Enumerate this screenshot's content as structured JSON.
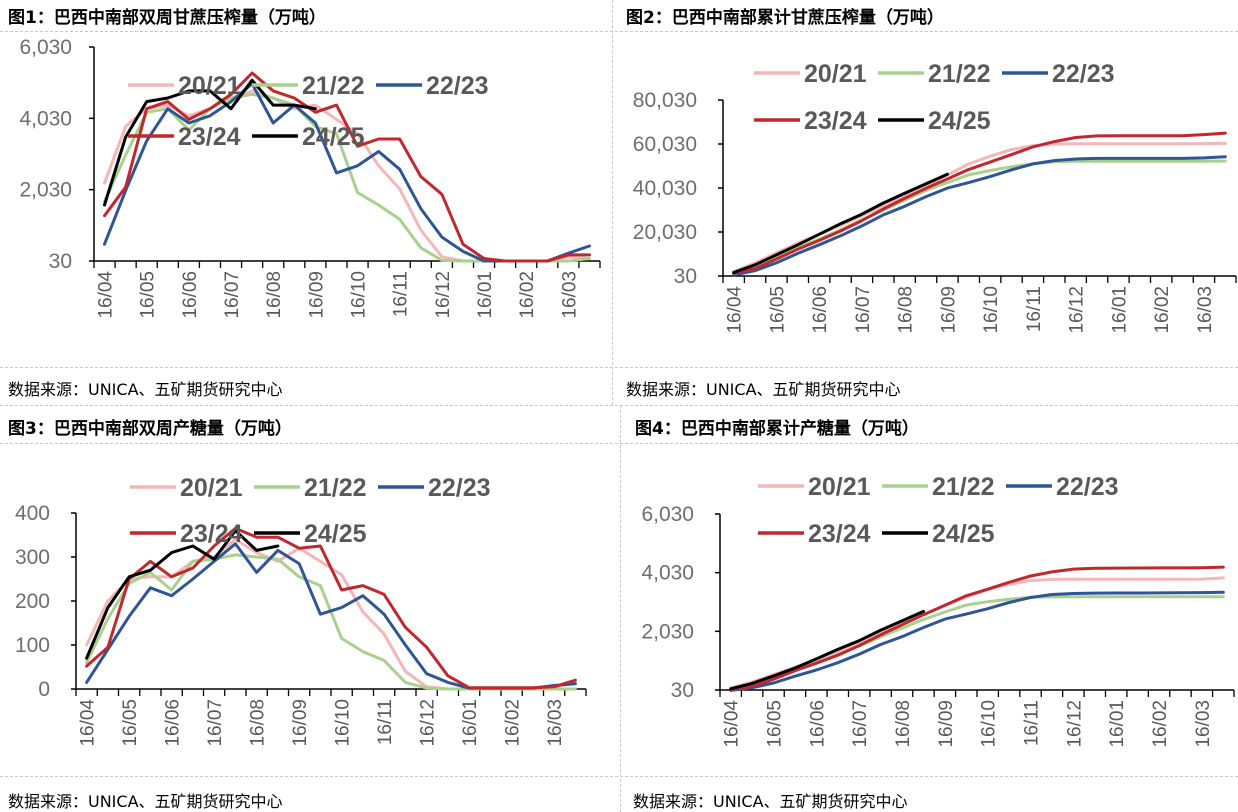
{
  "figures": [
    {
      "title": "图1：巴西中南部双周甘蔗压榨量（万吨）",
      "source": "数据来源：UNICA、五矿期货研究中心"
    },
    {
      "title": "图2：巴西中南部累计甘蔗压榨量（万吨）",
      "source": "数据来源：UNICA、五矿期货研究中心"
    },
    {
      "title": "图3：巴西中南部双周产糖量（万吨）",
      "source": "数据来源：UNICA、五矿期货研究中心"
    },
    {
      "title": "图4：巴西中南部累计产糖量（万吨）",
      "source": "数据来源：UNICA、五矿期货研究中心"
    }
  ],
  "colors": {
    "20/21": "#F4B6B8",
    "21/22": "#A9D18E",
    "22/23": "#2F5597",
    "23/24": "#C0282D",
    "24/25": "#000000"
  },
  "chart_data": [
    {
      "type": "line",
      "title": "图1：巴西中南部双周甘蔗压榨量（万吨）",
      "xlabel": "",
      "ylabel": "",
      "ylim": [
        30,
        6030
      ],
      "yticks": [
        30,
        2030,
        4030,
        6030
      ],
      "ytick_labels": [
        "30",
        "2,030",
        "4,030",
        "6,030"
      ],
      "x_tick_labels": [
        "16/04",
        "16/05",
        "16/06",
        "16/07",
        "16/08",
        "16/09",
        "16/10",
        "16/11",
        "16/12",
        "16/01",
        "16/02",
        "16/03"
      ],
      "n_periods": 24,
      "legend_position": "top",
      "series": [
        {
          "name": "20/21",
          "values": [
            2210,
            3800,
            4300,
            4400,
            4100,
            4300,
            4600,
            4800,
            4600,
            4300,
            4400,
            4000,
            3600,
            2700,
            2050,
            900,
            150,
            30,
            30,
            30,
            30,
            30,
            150,
            100
          ]
        },
        {
          "name": "21/22",
          "values": [
            1700,
            3000,
            4200,
            4300,
            3700,
            4300,
            4600,
            4700,
            4600,
            4400,
            3800,
            3600,
            1950,
            1600,
            1200,
            400,
            50,
            30,
            30,
            30,
            30,
            30,
            30,
            100
          ]
        },
        {
          "name": "22/23",
          "values": [
            500,
            2000,
            3400,
            4300,
            3900,
            4100,
            4500,
            5000,
            3900,
            4400,
            3900,
            2500,
            2700,
            3100,
            2600,
            1500,
            700,
            300,
            30,
            30,
            30,
            30,
            250,
            450
          ]
        },
        {
          "name": "23/24",
          "values": [
            1300,
            2100,
            4300,
            4500,
            4000,
            4300,
            4700,
            5300,
            4800,
            4600,
            4200,
            4400,
            3250,
            3450,
            3450,
            2400,
            1900,
            500,
            100,
            30,
            30,
            30,
            200,
            200
          ]
        },
        {
          "name": "24/25",
          "values": [
            1600,
            3500,
            4500,
            4600,
            4800,
            4800,
            4300,
            5100,
            4400,
            4400,
            4300
          ]
        }
      ]
    },
    {
      "type": "line",
      "title": "图2：巴西中南部累计甘蔗压榨量（万吨）",
      "xlabel": "",
      "ylabel": "",
      "ylim": [
        30,
        80030
      ],
      "yticks": [
        30,
        20030,
        40030,
        60030,
        80030
      ],
      "ytick_labels": [
        "30",
        "20,030",
        "40,030",
        "60,030",
        "80,030"
      ],
      "x_tick_labels": [
        "16/04",
        "16/05",
        "16/06",
        "16/07",
        "16/08",
        "16/09",
        "16/10",
        "16/11",
        "16/12",
        "16/01",
        "16/02",
        "16/03"
      ],
      "n_periods": 24,
      "legend_position": "top",
      "series": [
        {
          "name": "20/21",
          "values": [
            2000,
            6000,
            10500,
            15000,
            19000,
            23000,
            27500,
            32000,
            36500,
            41000,
            46000,
            51000,
            54500,
            57500,
            59300,
            60000,
            60100,
            60100,
            60100,
            60100,
            60100,
            60100,
            60200,
            60300
          ]
        },
        {
          "name": "21/22",
          "values": [
            1700,
            4700,
            9000,
            13000,
            16800,
            21000,
            25500,
            30000,
            34500,
            39000,
            42500,
            46000,
            48000,
            49700,
            51000,
            52000,
            52200,
            52200,
            52200,
            52200,
            52200,
            52200,
            52200,
            52300
          ]
        },
        {
          "name": "22/23",
          "values": [
            500,
            2500,
            6000,
            10300,
            14200,
            18300,
            22800,
            27800,
            31700,
            36100,
            40000,
            42500,
            45200,
            48300,
            51000,
            52500,
            53200,
            53500,
            53500,
            53500,
            53500,
            53500,
            53700,
            54200
          ]
        },
        {
          "name": "23/24",
          "values": [
            1300,
            3400,
            7700,
            12200,
            16200,
            20500,
            25200,
            30500,
            35300,
            39900,
            44100,
            48500,
            51800,
            55200,
            58700,
            61100,
            63000,
            63700,
            63800,
            63800,
            63800,
            63800,
            64300,
            65000
          ]
        },
        {
          "name": "24/25",
          "values": [
            1600,
            5100,
            9600,
            14200,
            19000,
            23800,
            28100,
            33200,
            37600,
            42000,
            46300
          ]
        }
      ]
    },
    {
      "type": "line",
      "title": "图3：巴西中南部双周产糖量（万吨）",
      "xlabel": "",
      "ylabel": "",
      "ylim": [
        0,
        400
      ],
      "yticks": [
        0,
        100,
        200,
        300,
        400
      ],
      "ytick_labels": [
        "0",
        "100",
        "200",
        "300",
        "400"
      ],
      "x_tick_labels": [
        "16/04",
        "16/05",
        "16/06",
        "16/07",
        "16/08",
        "16/09",
        "16/10",
        "16/11",
        "16/12",
        "16/01",
        "16/02",
        "16/03"
      ],
      "n_periods": 24,
      "legend_position": "top",
      "series": [
        {
          "name": "20/21",
          "values": [
            100,
            200,
            250,
            255,
            255,
            290,
            300,
            340,
            310,
            290,
            320,
            290,
            260,
            175,
            125,
            40,
            5,
            0,
            0,
            0,
            0,
            0,
            5,
            15
          ]
        },
        {
          "name": "21/22",
          "values": [
            60,
            160,
            240,
            265,
            225,
            290,
            295,
            305,
            300,
            295,
            255,
            235,
            115,
            85,
            65,
            15,
            2,
            0,
            0,
            0,
            0,
            0,
            0,
            0
          ]
        },
        {
          "name": "22/23",
          "values": [
            15,
            90,
            165,
            230,
            212,
            250,
            290,
            330,
            265,
            315,
            285,
            170,
            185,
            212,
            170,
            100,
            35,
            15,
            2,
            2,
            2,
            2,
            8,
            12
          ]
        },
        {
          "name": "23/24",
          "values": [
            52,
            95,
            250,
            290,
            255,
            275,
            325,
            365,
            345,
            345,
            320,
            325,
            225,
            235,
            215,
            140,
            95,
            30,
            3,
            3,
            3,
            3,
            5,
            20
          ]
        },
        {
          "name": "24/25",
          "values": [
            70,
            185,
            255,
            270,
            310,
            325,
            295,
            360,
            315,
            325
          ]
        }
      ]
    },
    {
      "type": "line",
      "title": "图4：巴西中南部累计产糖量（万吨）",
      "xlabel": "",
      "ylabel": "",
      "ylim": [
        30,
        6030
      ],
      "yticks": [
        30,
        2030,
        4030,
        6030
      ],
      "ytick_labels": [
        "30",
        "2,030",
        "4,030",
        "6,030"
      ],
      "x_tick_labels": [
        "16/04",
        "16/05",
        "16/06",
        "16/07",
        "16/08",
        "16/09",
        "16/10",
        "16/11",
        "16/12",
        "16/01",
        "16/02",
        "16/03"
      ],
      "n_periods": 24,
      "legend_position": "top",
      "series": [
        {
          "name": "20/21",
          "values": [
            100,
            300,
            550,
            805,
            1060,
            1350,
            1650,
            1990,
            2300,
            2590,
            2910,
            3200,
            3460,
            3635,
            3760,
            3800,
            3805,
            3805,
            3805,
            3805,
            3805,
            3805,
            3810,
            3850
          ]
        },
        {
          "name": "21/22",
          "values": [
            60,
            220,
            460,
            725,
            950,
            1240,
            1535,
            1840,
            2140,
            2435,
            2690,
            2925,
            3040,
            3125,
            3190,
            3205,
            3207,
            3207,
            3207,
            3207,
            3207,
            3207,
            3207,
            3207
          ]
        },
        {
          "name": "22/23",
          "values": [
            15,
            105,
            270,
            500,
            712,
            962,
            1252,
            1582,
            1847,
            2162,
            2447,
            2617,
            2802,
            3014,
            3184,
            3284,
            3319,
            3334,
            3336,
            3338,
            3340,
            3342,
            3350,
            3362
          ]
        },
        {
          "name": "23/24",
          "values": [
            52,
            147,
            397,
            687,
            942,
            1217,
            1542,
            1907,
            2252,
            2597,
            2917,
            3242,
            3467,
            3702,
            3917,
            4057,
            4152,
            4182,
            4185,
            4188,
            4191,
            4194,
            4199,
            4219
          ]
        },
        {
          "name": "24/25",
          "values": [
            70,
            255,
            510,
            780,
            1090,
            1415,
            1710,
            2070,
            2385,
            2710
          ]
        }
      ]
    }
  ]
}
